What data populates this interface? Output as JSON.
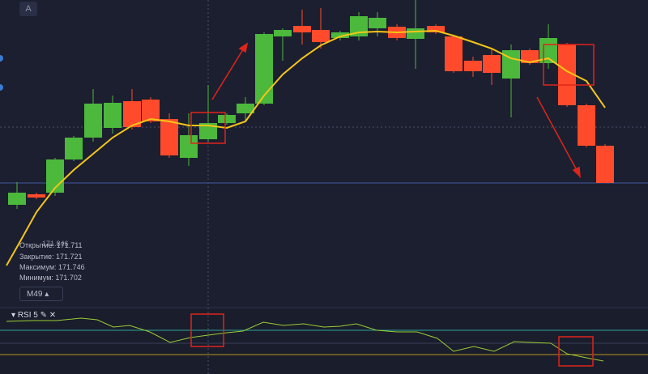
{
  "toolbar": {
    "button": "A"
  },
  "legend": {
    "price": "171.846",
    "open": "Открытие: 171.711",
    "close": "Закрытие: 171.721",
    "high": "Максимум: 171.746",
    "low": "Минимум: 171.702"
  },
  "timeframe": "M49",
  "indicator": {
    "name": "RSI 5"
  }
}
